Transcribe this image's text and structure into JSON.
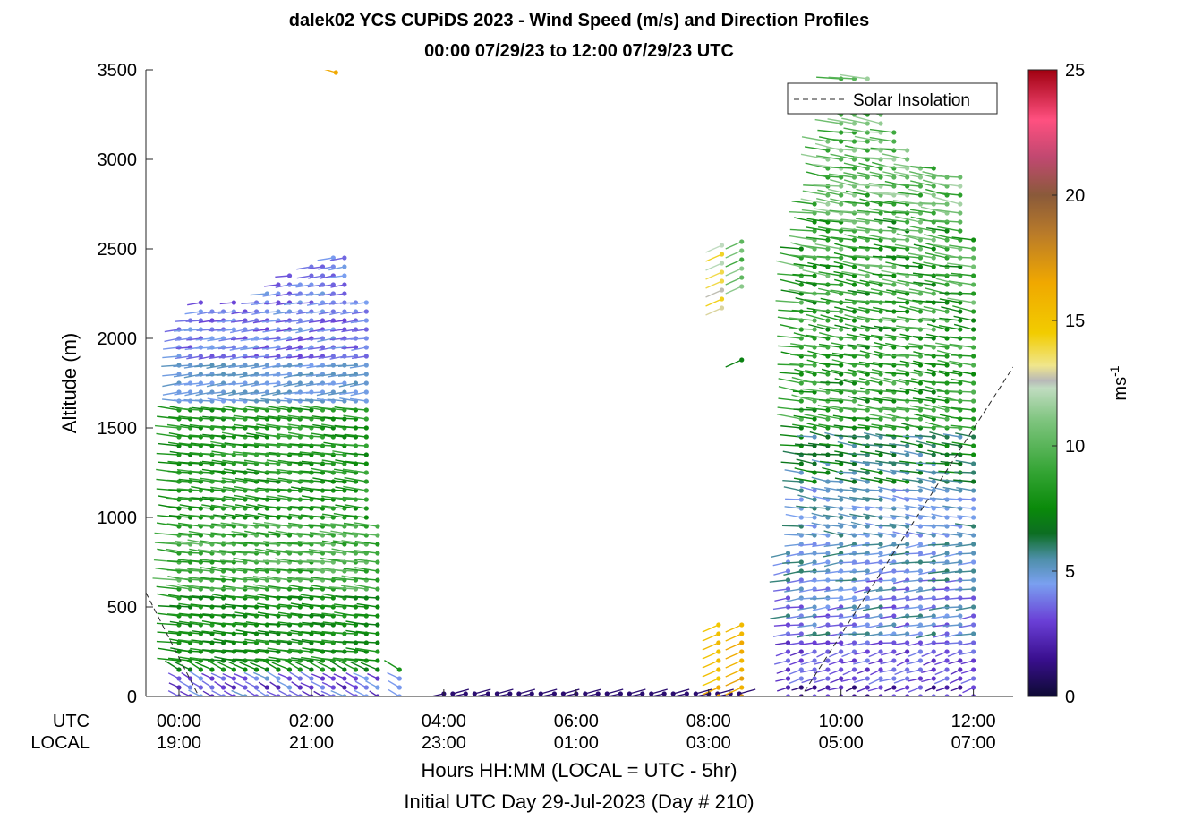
{
  "chart_data": {
    "type": "wind-barb-profile",
    "title_line1": "dalek02 YCS CUPiDS 2023 - Wind Speed (m/s) and Direction Profiles",
    "title_line2": "00:00 07/29/23 to 12:00 07/29/23  UTC",
    "ylabel": "Altitude (m)",
    "xlabel_line1": "Hours HH:MM  (LOCAL = UTC - 5hr)",
    "xlabel_line2": "Initial UTC Day 29-Jul-2023 (Day # 210)",
    "row_label_utc": "UTC",
    "row_label_local": "LOCAL",
    "ylim": [
      0,
      3500
    ],
    "yticks": [
      0,
      500,
      1000,
      1500,
      2000,
      2500,
      3000,
      3500
    ],
    "xlim_hours": [
      -0.5,
      12.6
    ],
    "xticks": [
      {
        "hour": 0,
        "utc": "00:00",
        "local": "19:00"
      },
      {
        "hour": 2,
        "utc": "02:00",
        "local": "21:00"
      },
      {
        "hour": 4,
        "utc": "04:00",
        "local": "23:00"
      },
      {
        "hour": 6,
        "utc": "06:00",
        "local": "01:00"
      },
      {
        "hour": 8,
        "utc": "08:00",
        "local": "03:00"
      },
      {
        "hour": 10,
        "utc": "10:00",
        "local": "05:00"
      },
      {
        "hour": 12,
        "utc": "12:00",
        "local": "07:00"
      }
    ],
    "colorbar": {
      "label": "ms",
      "label_exponent": "-1",
      "range": [
        0,
        25
      ],
      "ticks": [
        0,
        5,
        10,
        15,
        20,
        25
      ],
      "stops": [
        {
          "v": 0,
          "c": "#0d0a33"
        },
        {
          "v": 1.5,
          "c": "#3a0f8f"
        },
        {
          "v": 3,
          "c": "#6a3fd6"
        },
        {
          "v": 4.5,
          "c": "#7aa0f0"
        },
        {
          "v": 5.5,
          "c": "#4d8fa8"
        },
        {
          "v": 6.5,
          "c": "#0c6e22"
        },
        {
          "v": 7.5,
          "c": "#0a8a0a"
        },
        {
          "v": 9,
          "c": "#35a535"
        },
        {
          "v": 11,
          "c": "#7ec47e"
        },
        {
          "v": 12.3,
          "c": "#c0dcc0"
        },
        {
          "v": 12.6,
          "c": "#b8b8b8"
        },
        {
          "v": 13.2,
          "c": "#f0e68c"
        },
        {
          "v": 14.5,
          "c": "#f2cc00"
        },
        {
          "v": 16.5,
          "c": "#f0a800"
        },
        {
          "v": 18.5,
          "c": "#b87a2a"
        },
        {
          "v": 20,
          "c": "#8a5a3a"
        },
        {
          "v": 21.5,
          "c": "#c04870"
        },
        {
          "v": 23,
          "c": "#ff5080"
        },
        {
          "v": 25,
          "c": "#a00010"
        }
      ]
    },
    "legend": {
      "label": "Solar Insolation",
      "placement": "top-right"
    },
    "solar_insolation_line": [
      {
        "t": -0.5,
        "z": 580
      },
      {
        "t": 0.3,
        "z": 0
      },
      {
        "t": 9.4,
        "z": 0
      },
      {
        "t": 12.6,
        "z": 1840
      }
    ],
    "profiles": [
      {
        "t": 0.0,
        "ztop": 2080,
        "tilt": 0.35
      },
      {
        "t": 0.17,
        "ztop": 2130,
        "tilt": 0.32
      },
      {
        "t": 0.33,
        "ztop": 2200,
        "tilt": 0.3
      },
      {
        "t": 0.5,
        "ztop": 2150,
        "tilt": 0.28
      },
      {
        "t": 0.67,
        "ztop": 2180,
        "tilt": 0.3
      },
      {
        "t": 0.83,
        "ztop": 2200,
        "tilt": 0.32
      },
      {
        "t": 1.0,
        "ztop": 2160,
        "tilt": 0.3
      },
      {
        "t": 1.17,
        "ztop": 2210,
        "tilt": 0.28
      },
      {
        "t": 1.33,
        "ztop": 2250,
        "tilt": 0.26
      },
      {
        "t": 1.5,
        "ztop": 2300,
        "tilt": 0.25
      },
      {
        "t": 1.67,
        "ztop": 2360,
        "tilt": 0.24
      },
      {
        "t": 1.83,
        "ztop": 2330,
        "tilt": 0.22
      },
      {
        "t": 2.0,
        "ztop": 2400,
        "tilt": 0.22
      },
      {
        "t": 2.17,
        "ztop": 2420,
        "tilt": 0.2
      },
      {
        "t": 2.33,
        "ztop": 2450,
        "tilt": 0.18
      },
      {
        "t": 2.5,
        "ztop": 2460,
        "tilt": 0.16
      },
      {
        "t": 2.67,
        "ztop": 2220,
        "tilt": 0.14
      },
      {
        "t": 2.83,
        "ztop": 2200,
        "tilt": 0.12
      },
      {
        "t": 3.0,
        "ztop": 980,
        "tilt": 0.1
      },
      {
        "t": 3.33,
        "ztop": 180,
        "tilt": 0.05
      },
      {
        "t": 9.2,
        "ztop": 830,
        "tilt": -0.2
      },
      {
        "t": 9.4,
        "ztop": 2500,
        "tilt": -0.25
      },
      {
        "t": 9.6,
        "ztop": 2750,
        "tilt": -0.25
      },
      {
        "t": 9.8,
        "ztop": 3100,
        "tilt": -0.28
      },
      {
        "t": 10.0,
        "ztop": 3480,
        "tilt": -0.3
      },
      {
        "t": 10.2,
        "ztop": 3480,
        "tilt": -0.3
      },
      {
        "t": 10.4,
        "ztop": 3480,
        "tilt": -0.28
      },
      {
        "t": 10.6,
        "ztop": 3300,
        "tilt": -0.25
      },
      {
        "t": 10.8,
        "ztop": 3150,
        "tilt": -0.22
      },
      {
        "t": 11.0,
        "ztop": 3050,
        "tilt": -0.2
      },
      {
        "t": 11.2,
        "ztop": 2950,
        "tilt": -0.2
      },
      {
        "t": 11.4,
        "ztop": 2950,
        "tilt": -0.2
      },
      {
        "t": 11.6,
        "ztop": 2940,
        "tilt": -0.2
      },
      {
        "t": 11.8,
        "ztop": 2940,
        "tilt": -0.2
      },
      {
        "t": 12.0,
        "ztop": 2560,
        "tilt": -0.2
      }
    ],
    "low_level_calm": [
      {
        "t": 4.0,
        "ws": 1
      },
      {
        "t": 4.33,
        "ws": 1
      },
      {
        "t": 4.67,
        "ws": 1
      },
      {
        "t": 5.0,
        "ws": 1
      },
      {
        "t": 5.33,
        "ws": 1
      },
      {
        "t": 5.67,
        "ws": 1
      },
      {
        "t": 6.0,
        "ws": 1
      },
      {
        "t": 6.33,
        "ws": 1
      },
      {
        "t": 6.67,
        "ws": 1
      },
      {
        "t": 7.0,
        "ws": 1
      },
      {
        "t": 7.33,
        "ws": 1
      },
      {
        "t": 7.67,
        "ws": 1
      },
      {
        "t": 8.0,
        "ws": 1
      },
      {
        "t": 8.33,
        "ws": 1
      }
    ],
    "early_morning_profiles": [
      {
        "t": 8.15,
        "zmin": 0,
        "zmax": 400,
        "ws": 15.5
      },
      {
        "t": 8.2,
        "zmin": 2170,
        "zmax": 2560,
        "ws": 13
      },
      {
        "t": 8.5,
        "zmin": 0,
        "zmax": 400,
        "ws": 16.5
      },
      {
        "t": 8.5,
        "zmin": 2290,
        "zmax": 2560,
        "ws": 10
      },
      {
        "t": 8.5,
        "zmin": 1880,
        "zmax": 1880,
        "ws": 7
      }
    ],
    "isolated_points": [
      {
        "t": 2.37,
        "z": 3485,
        "ws": 16.5
      }
    ]
  }
}
